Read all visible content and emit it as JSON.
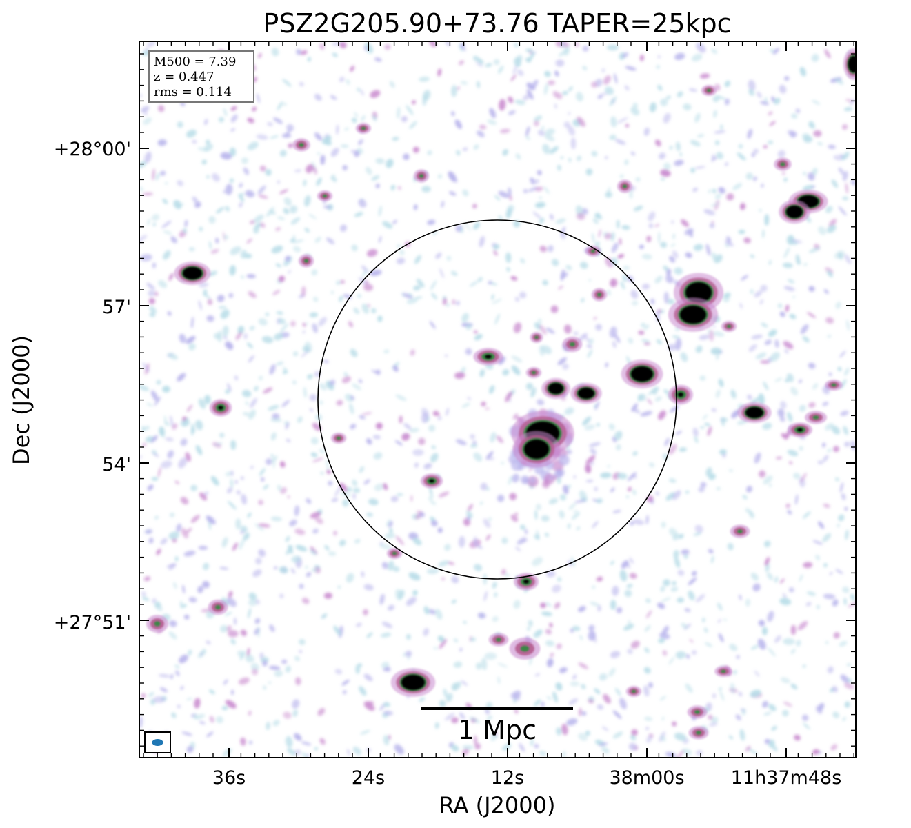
{
  "chart_data": {
    "type": "heatmap",
    "title": "PSZ2G205.90+73.76 TAPER=25kpc",
    "xlabel": "RA (J2000)",
    "ylabel": "Dec (J2000)",
    "x_ticks": [
      "36s",
      "24s",
      "12s",
      "38m00s",
      "11h37m48s"
    ],
    "y_ticks": [
      "+28°00'",
      "57'",
      "54'",
      "+27°51'"
    ],
    "info_box": [
      "M500 = 7.39",
      "z = 0.447",
      "rms = 0.114"
    ],
    "scalebar_label": "1 Mpc",
    "colormap": [
      "#ffffff",
      "#b9dde8",
      "#b8b4ec",
      "#c98bcf",
      "#b45b8e",
      "#2f8a3e",
      "#000000"
    ],
    "circle_color": "#000000",
    "beam_color": "#1f77b4"
  }
}
